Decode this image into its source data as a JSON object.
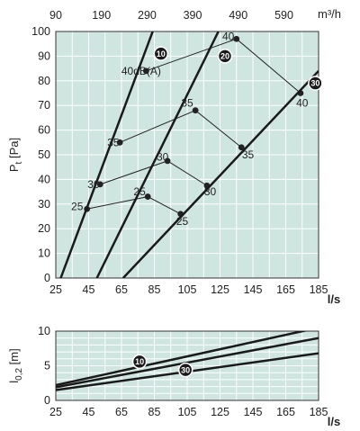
{
  "chart_data": [
    {
      "type": "line",
      "ylabel": "P",
      "ylabel_sub": "t",
      "ylabel_unit": "[Pa]",
      "xlabel": "l/s",
      "x2label": "m³/h",
      "xlim": [
        25,
        185
      ],
      "ylim": [
        0,
        100
      ],
      "x_ticks": [
        "25",
        "45",
        "65",
        "85",
        "105",
        "125",
        "145",
        "165",
        "185"
      ],
      "y_ticks": [
        "0",
        "10",
        "20",
        "30",
        "40",
        "50",
        "60",
        "70",
        "80",
        "90",
        "100"
      ],
      "x2_ticks": [
        "90",
        "190",
        "290",
        "390",
        "490",
        "590"
      ],
      "x2_tick_positions": [
        25,
        52.8,
        80.6,
        108.3,
        136.1,
        163.9
      ],
      "grid": true,
      "series": [
        {
          "name": "10",
          "points": [
            [
              28,
              0
            ],
            [
              84,
              100
            ]
          ]
        },
        {
          "name": "20",
          "points": [
            [
              50,
              0
            ],
            [
              124,
              100
            ]
          ]
        },
        {
          "name": "30",
          "points": [
            [
              66,
              0
            ],
            [
              185,
              84
            ]
          ]
        }
      ],
      "sound_series": [
        {
          "name": "25",
          "points": [
            [
              44,
              28
            ],
            [
              81,
              33
            ],
            [
              101,
              26
            ]
          ]
        },
        {
          "name": "30",
          "points": [
            [
              52,
              38
            ],
            [
              93,
              47.5
            ],
            [
              117,
              37.5
            ]
          ]
        },
        {
          "name": "35",
          "points": [
            [
              64,
              55
            ],
            [
              110,
              68
            ],
            [
              138,
              53
            ]
          ]
        },
        {
          "name": "40dB(A)",
          "points": [
            [
              80,
              84
            ],
            [
              135,
              97
            ],
            [
              174,
              75
            ]
          ]
        }
      ],
      "sound_labels": [
        {
          "text": "25",
          "x": 38,
          "y": 29
        },
        {
          "text": "30",
          "x": 48,
          "y": 38
        },
        {
          "text": "35",
          "x": 60,
          "y": 55
        },
        {
          "text": "40dB(A)",
          "x": 77,
          "y": 84
        },
        {
          "text": "25",
          "x": 76,
          "y": 35
        },
        {
          "text": "30",
          "x": 90,
          "y": 49
        },
        {
          "text": "35",
          "x": 105,
          "y": 71
        },
        {
          "text": "40",
          "x": 130,
          "y": 98
        },
        {
          "text": "25",
          "x": 102,
          "y": 23
        },
        {
          "text": "30",
          "x": 119,
          "y": 35
        },
        {
          "text": "35",
          "x": 142,
          "y": 50
        },
        {
          "text": "40",
          "x": 175,
          "y": 71
        }
      ],
      "badges": [
        {
          "text": "10",
          "x": 89,
          "y": 91
        },
        {
          "text": "20",
          "x": 128,
          "y": 90
        },
        {
          "text": "30",
          "x": 183,
          "y": 79
        }
      ]
    },
    {
      "type": "line",
      "ylabel": "l",
      "ylabel_sub": "0,2",
      "ylabel_unit": "[m]",
      "xlabel": "l/s",
      "xlim": [
        25,
        185
      ],
      "ylim": [
        0,
        10
      ],
      "x_ticks": [
        "25",
        "45",
        "65",
        "85",
        "105",
        "125",
        "145",
        "165",
        "185"
      ],
      "y_ticks": [
        "0",
        "5",
        "10"
      ],
      "grid": true,
      "series": [
        {
          "name": "10",
          "points": [
            [
              25,
              2.2
            ],
            [
              185,
              10.5
            ]
          ]
        },
        {
          "name": "20",
          "points": [
            [
              25,
              1.9
            ],
            [
              185,
              9.0
            ]
          ]
        },
        {
          "name": "30",
          "points": [
            [
              25,
              1.5
            ],
            [
              185,
              6.8
            ]
          ]
        }
      ],
      "badges": [
        {
          "text": "10",
          "x": 76,
          "y": 5.6
        },
        {
          "text": "30",
          "x": 104,
          "y": 4.4
        }
      ]
    }
  ]
}
